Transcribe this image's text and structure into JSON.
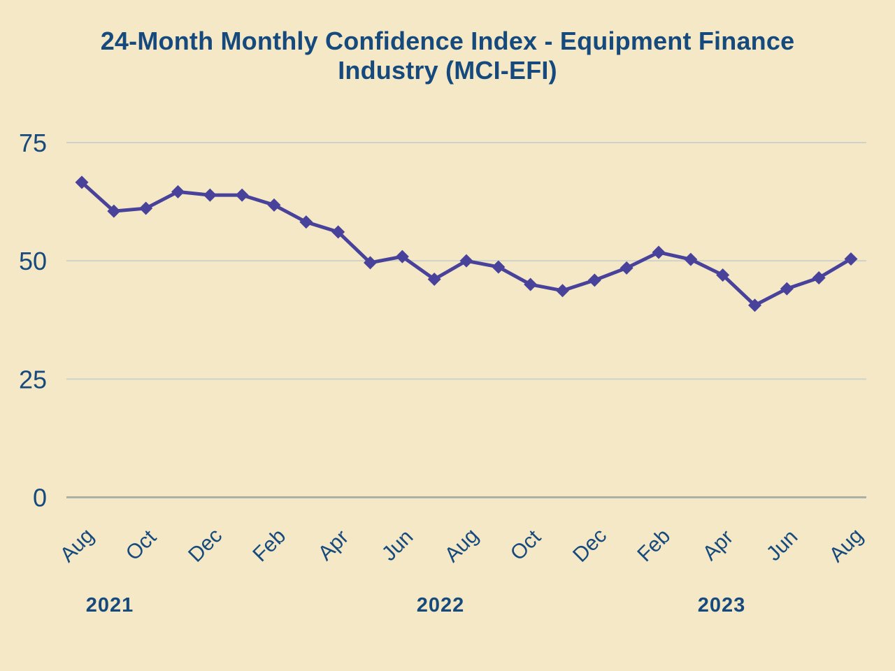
{
  "page": {
    "background_color": "#f4e8c7"
  },
  "title": {
    "line1": "24-Month Monthly Confidence Index - Equipment Finance",
    "line2": "Industry (MCI-EFI)",
    "color": "#164a7c"
  },
  "colors": {
    "axis_text": "#164a7c",
    "line": "#48429b",
    "marker": "#48429b",
    "gridline": "#cfd2c9",
    "zero_axis_line": "#a9b0a8"
  },
  "chart_data": {
    "type": "line",
    "title": "24-Month Monthly Confidence Index - Equipment Finance Industry (MCI-EFI)",
    "x": [
      "Aug 2021",
      "Sep 2021",
      "Oct 2021",
      "Nov 2021",
      "Dec 2021",
      "Jan 2022",
      "Feb 2022",
      "Mar 2022",
      "Apr 2022",
      "May 2022",
      "Jun 2022",
      "Jul 2022",
      "Aug 2022",
      "Sep 2022",
      "Oct 2022",
      "Nov 2022",
      "Dec 2022",
      "Jan 2023",
      "Feb 2023",
      "Mar 2023",
      "Apr 2023",
      "May 2023",
      "Jun 2023",
      "Jul 2023",
      "Aug 2023"
    ],
    "values": [
      66.6,
      60.5,
      61.1,
      64.6,
      63.9,
      63.9,
      61.8,
      58.2,
      56.1,
      49.6,
      50.9,
      46.1,
      50.0,
      48.7,
      45.0,
      43.7,
      45.9,
      48.5,
      51.8,
      50.3,
      47.0,
      40.6,
      44.1,
      46.4,
      50.4
    ],
    "series_name": "MCI-EFI",
    "x_tick_labels": [
      "Aug",
      "Oct",
      "Dec",
      "Feb",
      "Apr",
      "Jun",
      "Aug",
      "Oct",
      "Dec",
      "Feb",
      "Apr",
      "Jun",
      "Aug"
    ],
    "year_labels": [
      "2021",
      "2022",
      "2023"
    ],
    "y_ticks": [
      75,
      50,
      25,
      0
    ],
    "ylim": [
      0,
      75
    ],
    "xlabel": "",
    "ylabel": "",
    "grid": true,
    "legend_position": "none",
    "marker": "diamond"
  }
}
